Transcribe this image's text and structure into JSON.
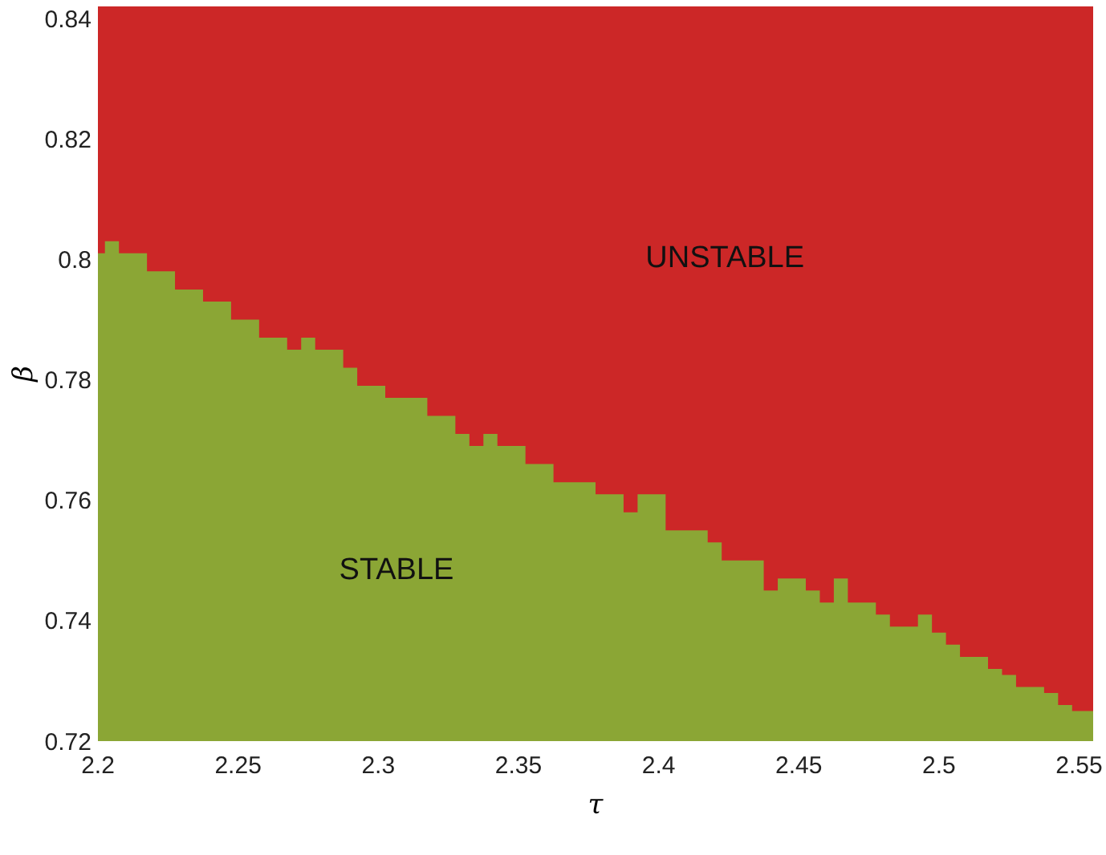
{
  "chart_data": {
    "type": "area",
    "xlabel": "τ",
    "ylabel": "β",
    "x": [
      2.2,
      2.205,
      2.21,
      2.215,
      2.22,
      2.225,
      2.23,
      2.235,
      2.24,
      2.245,
      2.25,
      2.255,
      2.26,
      2.265,
      2.27,
      2.275,
      2.28,
      2.285,
      2.29,
      2.295,
      2.3,
      2.305,
      2.31,
      2.315,
      2.32,
      2.325,
      2.33,
      2.335,
      2.34,
      2.345,
      2.35,
      2.355,
      2.36,
      2.365,
      2.37,
      2.375,
      2.38,
      2.385,
      2.39,
      2.395,
      2.4,
      2.405,
      2.41,
      2.415,
      2.42,
      2.425,
      2.43,
      2.435,
      2.44,
      2.445,
      2.45,
      2.455,
      2.46,
      2.465,
      2.47,
      2.475,
      2.48,
      2.485,
      2.49,
      2.495,
      2.5,
      2.505,
      2.51,
      2.515,
      2.52,
      2.525,
      2.53,
      2.535,
      2.54,
      2.545,
      2.55,
      2.555
    ],
    "series": [
      {
        "name": "STABLE",
        "color": "#8ba635",
        "values": [
          0.801,
          0.803,
          0.801,
          0.801,
          0.798,
          0.798,
          0.795,
          0.795,
          0.793,
          0.793,
          0.79,
          0.79,
          0.787,
          0.787,
          0.785,
          0.787,
          0.785,
          0.785,
          0.782,
          0.779,
          0.779,
          0.777,
          0.777,
          0.777,
          0.774,
          0.774,
          0.771,
          0.769,
          0.771,
          0.769,
          0.769,
          0.766,
          0.766,
          0.763,
          0.763,
          0.763,
          0.761,
          0.761,
          0.758,
          0.761,
          0.761,
          0.755,
          0.755,
          0.755,
          0.753,
          0.75,
          0.75,
          0.75,
          0.745,
          0.747,
          0.747,
          0.745,
          0.743,
          0.747,
          0.743,
          0.743,
          0.741,
          0.739,
          0.739,
          0.741,
          0.738,
          0.736,
          0.734,
          0.734,
          0.732,
          0.731,
          0.729,
          0.729,
          0.728,
          0.726,
          0.725,
          0.725
        ]
      }
    ],
    "bands": [
      {
        "axis": "y",
        "from": 0.72,
        "to": 0.842,
        "color": "#cc2727",
        "label": "UNSTABLE"
      }
    ],
    "xlim": [
      2.2,
      2.555
    ],
    "xticks": [
      2.2,
      2.25,
      2.3,
      2.35,
      2.4,
      2.45,
      2.5,
      2.55
    ],
    "ylim": [
      0.72,
      0.842
    ],
    "yticks": [
      0.72,
      0.74,
      0.76,
      0.78,
      0.8,
      0.82,
      0.84
    ],
    "grid": false
  }
}
